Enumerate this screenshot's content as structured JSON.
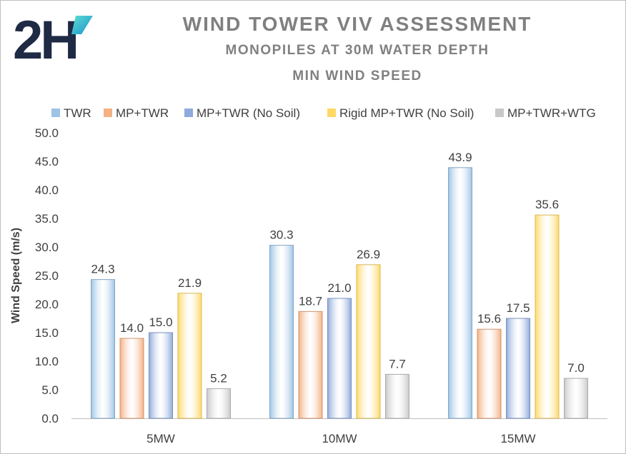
{
  "chart_data": {
    "type": "bar",
    "title": "WIND TOWER VIV ASSESSMENT",
    "subtitle": "MONOPILES AT 30M WATER DEPTH",
    "subtitle2": "MIN WIND SPEED",
    "ylabel": "Wind Speed (m/s)",
    "xlabel": "",
    "ylim": [
      0,
      50
    ],
    "ytick_step": 5,
    "yticks": [
      "0.0",
      "5.0",
      "10.0",
      "15.0",
      "20.0",
      "25.0",
      "30.0",
      "35.0",
      "40.0",
      "45.0",
      "50.0"
    ],
    "categories": [
      "5MW",
      "10MW",
      "15MW"
    ],
    "legend_position": "top",
    "grid": false,
    "series": [
      {
        "name": "TWR",
        "color": "#9dc3e6",
        "values": [
          24.3,
          30.3,
          43.9
        ],
        "labels": [
          "24.3",
          "30.3",
          "43.9"
        ]
      },
      {
        "name": "MP+TWR",
        "color": "#f4b183",
        "values": [
          14.0,
          18.7,
          15.6
        ],
        "labels": [
          "14.0",
          "18.7",
          "15.6"
        ]
      },
      {
        "name": "MP+TWR (No Soil)",
        "color": "#8faadc",
        "values": [
          15.0,
          21.0,
          17.5
        ],
        "labels": [
          "15.0",
          "21.0",
          "17.5"
        ]
      },
      {
        "name": "Rigid MP+TWR (No Soil)",
        "color": "#ffd966",
        "values": [
          21.9,
          26.9,
          35.6
        ],
        "labels": [
          "21.9",
          "26.9",
          "35.6"
        ]
      },
      {
        "name": "MP+TWR+WTG",
        "color": "#c9c9c9",
        "values": [
          5.2,
          7.7,
          7.0
        ],
        "labels": [
          "5.2",
          "7.7",
          "7.0"
        ]
      }
    ]
  },
  "logo": {
    "text": "2H",
    "colors": [
      "#1f2a44",
      "#3bc9c3"
    ]
  }
}
